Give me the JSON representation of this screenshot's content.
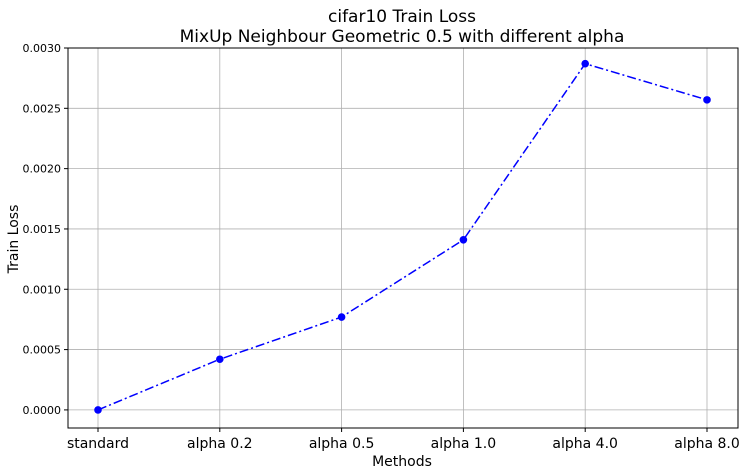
{
  "chart_data": {
    "type": "line",
    "title": "cifar10 Train Loss",
    "subtitle": "MixUp Neighbour Geometric 0.5 with different alpha",
    "xlabel": "Methods",
    "ylabel": "Train Loss",
    "categories": [
      "standard",
      "alpha 0.2",
      "alpha 0.5",
      "alpha 1.0",
      "alpha 4.0",
      "alpha 8.0"
    ],
    "series": [
      {
        "values": [
          0.0,
          0.00042,
          0.00077,
          0.00141,
          0.00287,
          0.00257
        ],
        "color": "#0000ff",
        "line_style": "dash-dot",
        "marker": "circle"
      }
    ],
    "ylim": [
      -0.00015,
      0.003
    ],
    "yticks": [
      0.0,
      0.0005,
      0.001,
      0.0015,
      0.002,
      0.0025,
      0.003
    ],
    "ytick_labels": [
      "0.0000",
      "0.0005",
      "0.0010",
      "0.0015",
      "0.0020",
      "0.0025",
      "0.0030"
    ],
    "grid": true,
    "legend": "none"
  }
}
